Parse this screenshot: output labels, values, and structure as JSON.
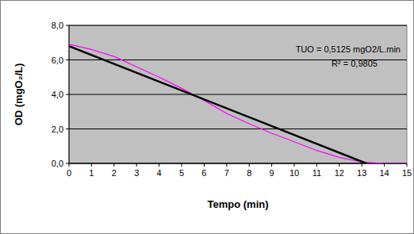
{
  "chart_data": {
    "type": "line",
    "x_label": "Tempo (min)",
    "y_label": "OD (mgO₂/L)",
    "annotations": [
      "TUO = 0,5125 mgO2/L.min",
      "R² = 0,9805"
    ],
    "xlim": [
      0,
      15
    ],
    "xticks": [
      0,
      1,
      2,
      3,
      4,
      5,
      6,
      7,
      8,
      9,
      10,
      11,
      12,
      13,
      14,
      15
    ],
    "ylim": [
      0,
      8
    ],
    "yticks": [
      {
        "value": 0,
        "label": "0,0"
      },
      {
        "value": 2,
        "label": "2,0"
      },
      {
        "value": 4,
        "label": "4,0"
      },
      {
        "value": 6,
        "label": "6,0"
      },
      {
        "value": 8,
        "label": "8,0"
      }
    ],
    "grid": true,
    "series": [
      {
        "color": "#ff00ff",
        "line_style": "solid",
        "x": [
          0,
          1,
          2,
          3,
          4,
          5,
          6,
          7,
          8,
          9,
          10,
          11,
          12,
          13,
          14,
          15
        ],
        "values": [
          6.9,
          6.6,
          6.2,
          5.6,
          5.0,
          4.35,
          3.65,
          2.9,
          2.3,
          1.75,
          1.25,
          0.75,
          0.35,
          0.08,
          0.0,
          0.0
        ]
      },
      {
        "color": "#000000",
        "line_style": "solid",
        "x": [
          0,
          13.2
        ],
        "values": [
          6.8,
          0
        ]
      }
    ]
  }
}
